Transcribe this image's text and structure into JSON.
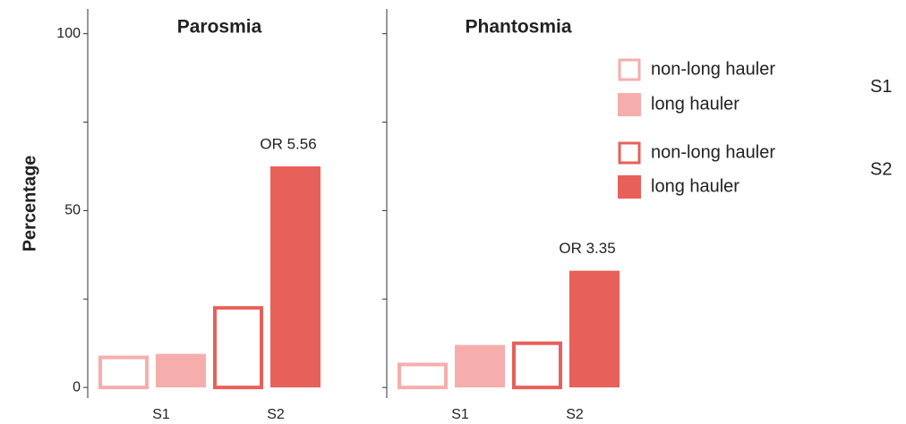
{
  "chart_data": [
    {
      "type": "bar",
      "title": "Parosmia",
      "ylabel": "Percentage",
      "categories": [
        "S1",
        "S2"
      ],
      "series": [
        {
          "name": "non-long hauler",
          "style": "outline",
          "values": [
            9,
            23
          ]
        },
        {
          "name": "long hauler",
          "style": "filled",
          "values": [
            9.5,
            62.5
          ]
        }
      ],
      "category_colors": [
        "#f6aeac",
        "#e8605a"
      ],
      "annotation": "OR 5.56",
      "ylim": [
        -3,
        107
      ],
      "yticks": [
        0,
        50,
        100
      ],
      "minor_yticks": [
        25,
        75
      ],
      "show_ytick_labels": true
    },
    {
      "type": "bar",
      "title": "Phantosmia",
      "categories": [
        "S1",
        "S2"
      ],
      "series": [
        {
          "name": "non-long hauler",
          "style": "outline",
          "values": [
            7,
            13
          ]
        },
        {
          "name": "long hauler",
          "style": "filled",
          "values": [
            12,
            33
          ]
        }
      ],
      "category_colors": [
        "#f6aeac",
        "#e8605a"
      ],
      "annotation": "OR 3.35",
      "ylim": [
        -3,
        107
      ],
      "yticks": [
        0,
        50,
        100
      ],
      "minor_yticks": [
        25,
        75
      ],
      "show_ytick_labels": false
    }
  ],
  "legend": {
    "groups": [
      {
        "label": "S1",
        "color": "#f6aeac",
        "entries": [
          {
            "name": "non-long hauler",
            "style": "outline"
          },
          {
            "name": "long hauler",
            "style": "filled"
          }
        ]
      },
      {
        "label": "S2",
        "color": "#e8605a",
        "entries": [
          {
            "name": "non-long hauler",
            "style": "outline"
          },
          {
            "name": "long hauler",
            "style": "filled"
          }
        ]
      }
    ]
  }
}
